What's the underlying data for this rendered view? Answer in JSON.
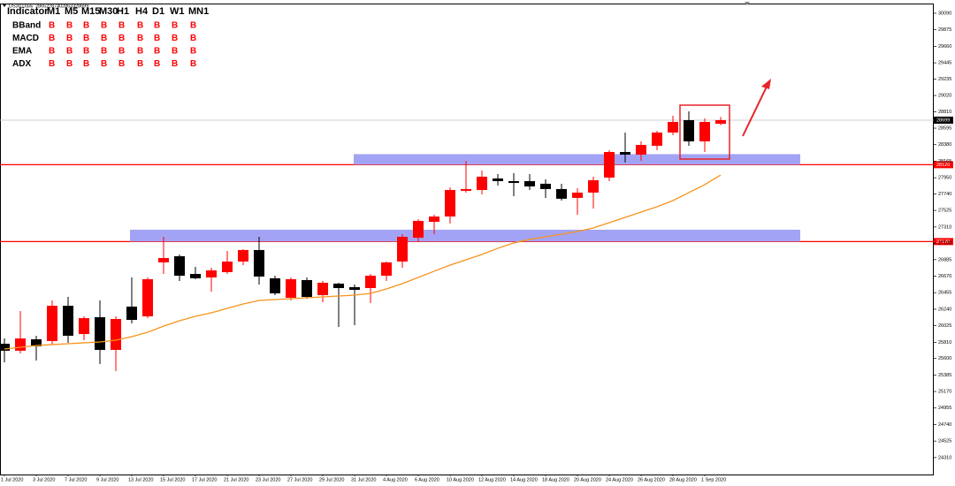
{
  "chart_data": {
    "type": "candlestick",
    "title": "US30,Daily",
    "categories": [
      "1 Jul 2020",
      null,
      "3 Jul 2020",
      null,
      "7 Jul 2020",
      null,
      "9 Jul 2020",
      null,
      "13 Jul 2020",
      null,
      "15 Jul 2020",
      null,
      "17 Jul 2020",
      null,
      "21 Jul 2020",
      null,
      "23 Jul 2020",
      null,
      "27 Jul 2020",
      null,
      "29 Jul 2020",
      null,
      "31 Jul 2020",
      null,
      "4 Aug 2020",
      null,
      "6 Aug 2020",
      null,
      "10 Aug 2020",
      null,
      "12 Aug 2020",
      null,
      "14 Aug 2020",
      null,
      "18 Aug 2020",
      null,
      "20 Aug 2020",
      null,
      "24 Aug 2020",
      null,
      "26 Aug 2020",
      null,
      "28 Aug 2020",
      null,
      "1 Sep 2020",
      null
    ],
    "open": [
      25791,
      25700,
      25849,
      25826,
      26285,
      25917,
      26136,
      25711,
      26274,
      26147,
      26849,
      26929,
      26699,
      26653,
      26722,
      26860,
      27010,
      26642,
      26389,
      26619,
      26423,
      26573,
      26527,
      26515,
      26676,
      26860,
      27170,
      27377,
      27446,
      27780,
      27791,
      27941,
      27906,
      27906,
      27872,
      27803,
      27688,
      27757,
      27952,
      28285,
      28251,
      28366,
      28538,
      28699,
      28423,
      28652
    ],
    "high": [
      25860,
      26216,
      25895,
      26354,
      26400,
      26147,
      26354,
      26147,
      26653,
      26653,
      27182,
      26952,
      26791,
      26780,
      26998,
      27021,
      27182,
      26676,
      26653,
      26653,
      26607,
      26584,
      26561,
      26699,
      26860,
      27216,
      27412,
      27469,
      27826,
      28170,
      28044,
      27998,
      28010,
      27998,
      27929,
      27872,
      27814,
      27964,
      28308,
      28538,
      28423,
      28561,
      28756,
      28814,
      28722,
      28740
    ],
    "low": [
      25550,
      25665,
      25573,
      25780,
      25803,
      25837,
      25527,
      25435,
      26055,
      26124,
      26699,
      26607,
      26630,
      26469,
      26699,
      26814,
      26561,
      26423,
      26354,
      26377,
      26331,
      26009,
      26032,
      26320,
      26607,
      26780,
      27113,
      27216,
      27354,
      27757,
      27734,
      27849,
      27711,
      27791,
      27688,
      27653,
      27469,
      27550,
      27906,
      28148,
      28170,
      28308,
      28504,
      28366,
      28285,
      28633
    ],
    "close": [
      25700,
      25860,
      25757,
      26285,
      25895,
      26124,
      25711,
      26113,
      26101,
      26630,
      26906,
      26676,
      26642,
      26745,
      26860,
      27010,
      26665,
      26446,
      26630,
      26400,
      26584,
      26515,
      26492,
      26676,
      26849,
      27182,
      27389,
      27446,
      27791,
      27803,
      27964,
      27906,
      27883,
      27837,
      27803,
      27677,
      27757,
      27918,
      28285,
      28251,
      28377,
      28538,
      28676,
      28423,
      28676,
      28699
    ],
    "up_color": "#ff0000",
    "down_color": "#000000",
    "ema": {
      "color": "#f7941d",
      "values": [
        25722,
        25745,
        25768,
        25780,
        25791,
        25803,
        25814,
        25837,
        25883,
        25941,
        26021,
        26090,
        26147,
        26193,
        26251,
        26308,
        26354,
        26366,
        26377,
        26389,
        26400,
        26412,
        26423,
        26446,
        26504,
        26573,
        26653,
        26734,
        26814,
        26883,
        26952,
        27033,
        27102,
        27148,
        27182,
        27216,
        27251,
        27297,
        27366,
        27435,
        27504,
        27573,
        27653,
        27757,
        27860,
        27986
      ]
    },
    "levels": [
      {
        "value": 28699,
        "color": "#c0c0c0",
        "label_color": "#000000"
      },
      {
        "value": 28120,
        "color": "#ff0000",
        "label_color": "#ff0000"
      },
      {
        "value": 27120,
        "color": "#ff0000",
        "label_color": "#ff0000"
      }
    ],
    "zones": [
      {
        "low": 28120,
        "high": 28257,
        "color": "#a3a3f5"
      },
      {
        "low": 27120,
        "high": 27274,
        "color": "#a3a3f5"
      }
    ],
    "ylim": [
      24090,
      30216
    ],
    "yticks": [
      30090,
      29875,
      29660,
      29445,
      29235,
      29020,
      28810,
      28595,
      28380,
      28165,
      27950,
      27740,
      27525,
      27310,
      27100,
      26885,
      26670,
      26455,
      26240,
      26025,
      25810,
      25600,
      25385,
      25170,
      24955,
      24740,
      24525,
      24310
    ]
  },
  "indicator_table": {
    "header": [
      "Indicator",
      "M1",
      "M5",
      "M15",
      "M30",
      "H1",
      "H4",
      "D1",
      "W1",
      "MN1"
    ],
    "rows": [
      {
        "name": "BBand",
        "signals": [
          "B",
          "B",
          "B",
          "B",
          "B",
          "B",
          "B",
          "B",
          "B"
        ]
      },
      {
        "name": "MACD",
        "signals": [
          "B",
          "B",
          "B",
          "B",
          "B",
          "B",
          "B",
          "B",
          "B"
        ]
      },
      {
        "name": "EMA",
        "signals": [
          "B",
          "B",
          "B",
          "B",
          "B",
          "B",
          "B",
          "B",
          "B"
        ]
      },
      {
        "name": "ADX",
        "signals": [
          "B",
          "B",
          "B",
          "B",
          "B",
          "B",
          "B",
          "B",
          "B"
        ]
      }
    ]
  }
}
